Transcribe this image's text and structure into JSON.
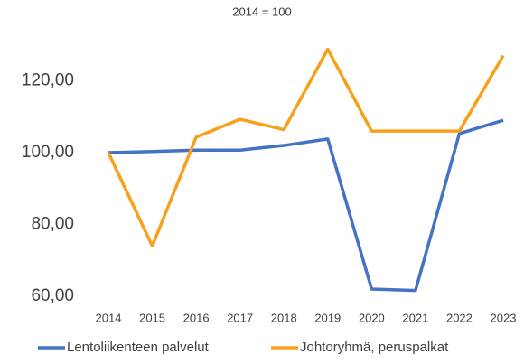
{
  "chart_data": {
    "type": "line",
    "title": "2014 = 100",
    "categories": [
      "2014",
      "2015",
      "2016",
      "2017",
      "2018",
      "2019",
      "2020",
      "2021",
      "2022",
      "2023"
    ],
    "series": [
      {
        "name": "Lentoliikenteen palvelut",
        "color": "#4472c4",
        "values": [
          100,
          100.3,
          100.7,
          100.7,
          102,
          103.8,
          62,
          61.6,
          105.3,
          109
        ]
      },
      {
        "name": "Johtoryhmä, peruspalkat",
        "color": "#f7a11a",
        "values": [
          100,
          74,
          104.3,
          109.3,
          106.4,
          128.8,
          106,
          106,
          106,
          127
        ]
      }
    ],
    "ylim": [
      60,
      140
    ],
    "yticks": [
      {
        "value": 60,
        "label": "60,00"
      },
      {
        "value": 80,
        "label": "80,00"
      },
      {
        "value": 100,
        "label": "100,00"
      },
      {
        "value": 120,
        "label": "120,00"
      }
    ],
    "grid": false,
    "legend": "bottom"
  }
}
